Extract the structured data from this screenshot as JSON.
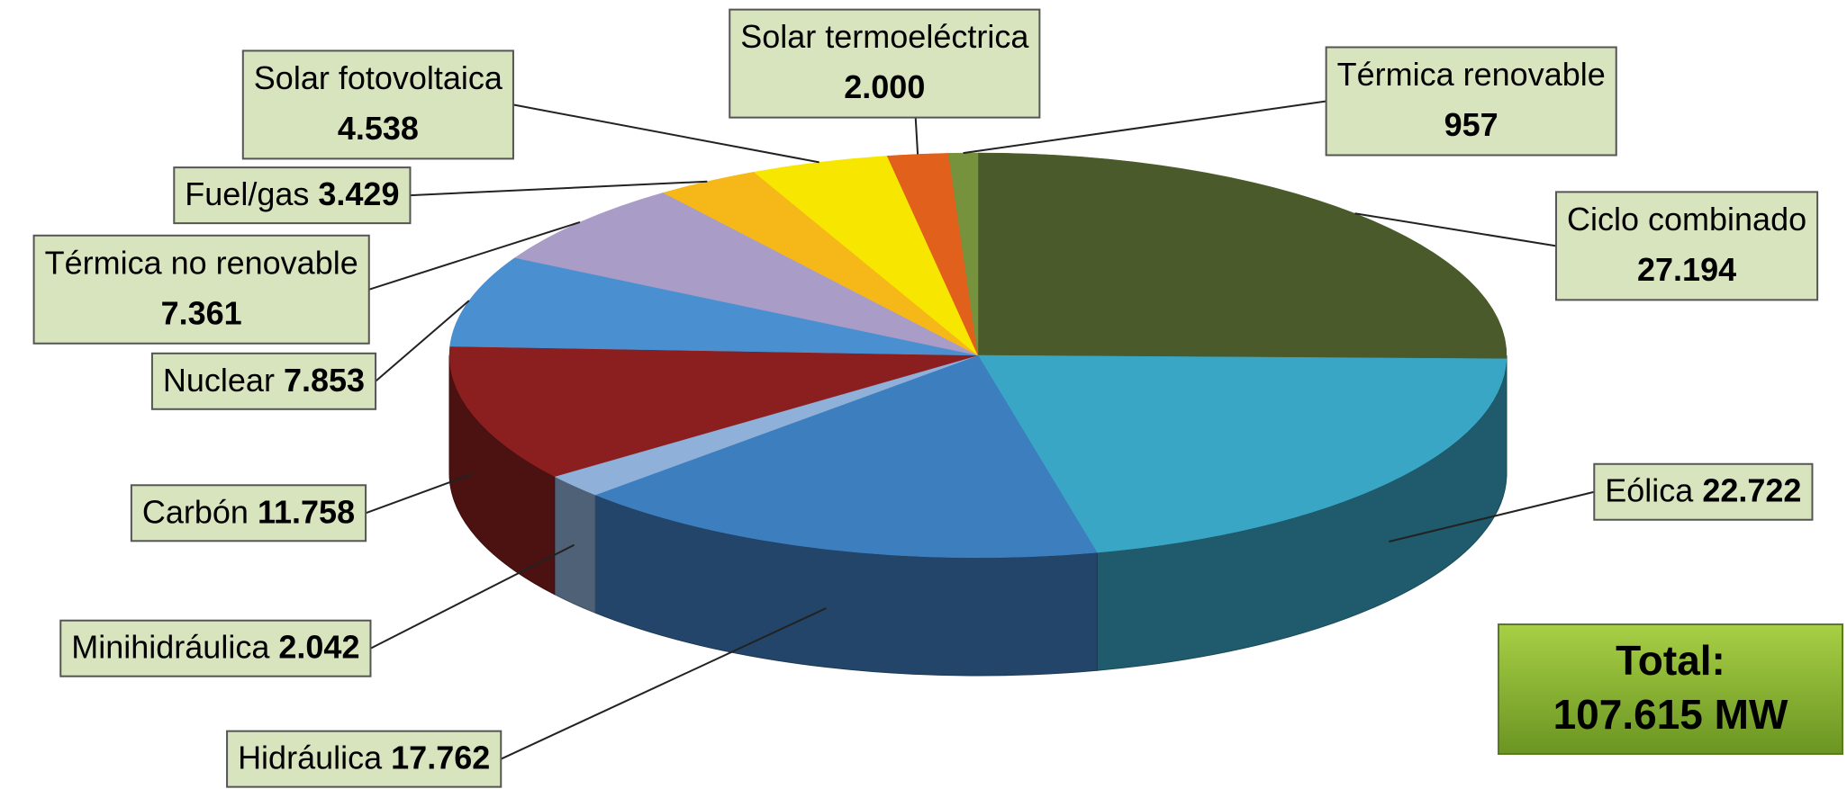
{
  "chart_data": {
    "type": "pie3d",
    "categories": [
      "Ciclo combinado",
      "Eólica",
      "Hidráulica",
      "Minihidráulica",
      "Carbón",
      "Nuclear",
      "Térmica no renovable",
      "Fuel/gas",
      "Solar fotovoltaica",
      "Solar termoeléctrica",
      "Térmica renovable"
    ],
    "values": [
      27194,
      22722,
      17762,
      2042,
      11758,
      7853,
      7361,
      3429,
      4538,
      2000,
      957
    ],
    "value_labels": [
      "27.194",
      "22.722",
      "17.762",
      "2.042",
      "11.758",
      "7.853",
      "7.361",
      "3.429",
      "4.538",
      "2.000",
      "957"
    ],
    "colors": [
      "#4a5a2a",
      "#38a6c4",
      "#3d7ebf",
      "#8fb0d8",
      "#8b1f1f",
      "#4a8fd0",
      "#a99cc6",
      "#f6b818",
      "#f6e600",
      "#e0601c",
      "#76923c"
    ],
    "annotations": [
      "Total:",
      "107.615 MW"
    ]
  }
}
